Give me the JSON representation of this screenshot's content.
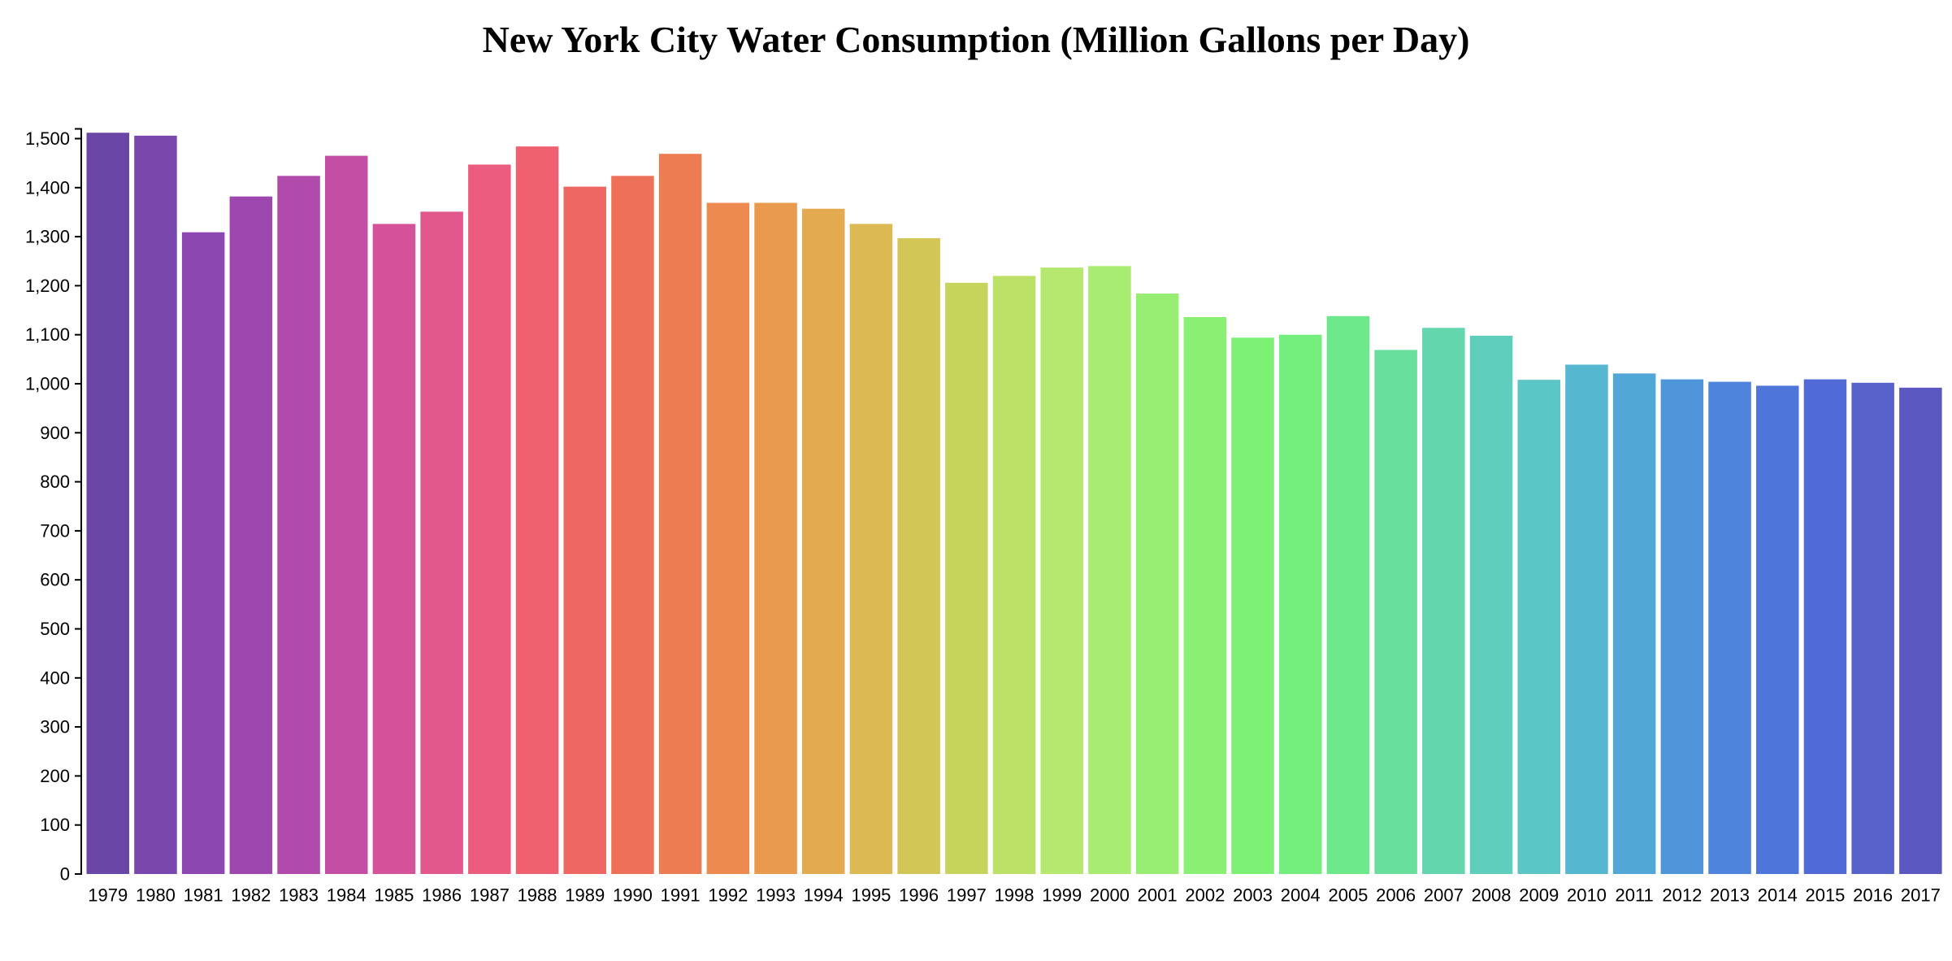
{
  "chart_data": {
    "type": "bar",
    "title": "New York City Water Consumption (Million Gallons per Day)",
    "xlabel": "",
    "ylabel": "",
    "ylim": [
      0,
      1520
    ],
    "y_ticks": [
      0,
      100,
      200,
      300,
      400,
      500,
      600,
      700,
      800,
      900,
      1000,
      1100,
      1200,
      1300,
      1400,
      1500
    ],
    "y_tick_labels": [
      "0",
      "100",
      "200",
      "300",
      "400",
      "500",
      "600",
      "700",
      "800",
      "900",
      "1,000",
      "1,100",
      "1,200",
      "1,300",
      "1,400",
      "1,500"
    ],
    "grid": false,
    "legend": "none",
    "categories": [
      "1979",
      "1980",
      "1981",
      "1982",
      "1983",
      "1984",
      "1985",
      "1986",
      "1987",
      "1988",
      "1989",
      "1990",
      "1991",
      "1992",
      "1993",
      "1994",
      "1995",
      "1996",
      "1997",
      "1998",
      "1999",
      "2000",
      "2001",
      "2002",
      "2003",
      "2004",
      "2005",
      "2006",
      "2007",
      "2008",
      "2009",
      "2010",
      "2011",
      "2012",
      "2013",
      "2014",
      "2015",
      "2016",
      "2017"
    ],
    "values": [
      1512,
      1506,
      1309,
      1382,
      1424,
      1465,
      1326,
      1351,
      1447,
      1484,
      1402,
      1424,
      1469,
      1369,
      1369,
      1357,
      1326,
      1297,
      1206,
      1220,
      1237,
      1240,
      1184,
      1136,
      1094,
      1100,
      1138,
      1069,
      1114,
      1098,
      1008,
      1039,
      1021,
      1009,
      1004,
      996,
      1009,
      1002,
      992
    ],
    "colors": [
      "#6a46a6",
      "#7a47ad",
      "#8c47b0",
      "#9e48af",
      "#b04aab",
      "#c34ea4",
      "#d5529a",
      "#e2588d",
      "#eb5c7e",
      "#ef616f",
      "#ef6762",
      "#ef7058",
      "#ee7c52",
      "#ec8a4f",
      "#e99a4e",
      "#e4aa50",
      "#dcb952",
      "#d1c656",
      "#c7d45c",
      "#bde066",
      "#b6e76f",
      "#a8ec72",
      "#98ee73",
      "#8af074",
      "#7df076",
      "#74ef7d",
      "#6de88a",
      "#68e09b",
      "#63d6ae",
      "#5fcebd",
      "#5bc6c6",
      "#55b7d0",
      "#51a7d6",
      "#4f95da",
      "#4e84dc",
      "#4e75da",
      "#516bd6",
      "#5762ca",
      "#5c58c2"
    ]
  }
}
